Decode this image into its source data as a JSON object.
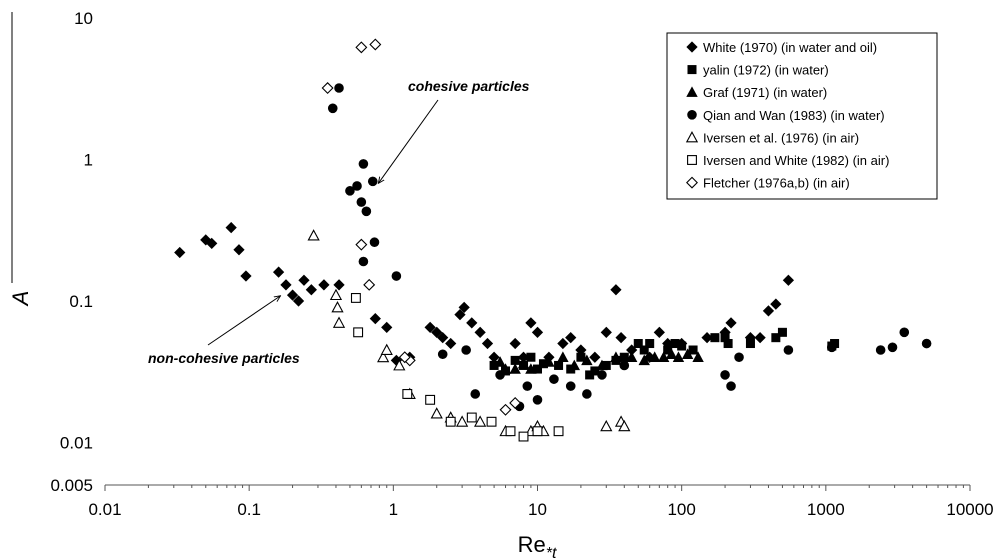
{
  "chart_data": {
    "type": "scatter",
    "title": "",
    "xlabel": "Re",
    "xlabel_sub": "*t",
    "ylabel": "A",
    "x_scale": "log",
    "y_scale": "log",
    "xlim": [
      0.01,
      10000
    ],
    "ylim": [
      0.005,
      10
    ],
    "x_ticks": [
      "0.01",
      "0.1",
      "1",
      "10",
      "100",
      "1000",
      "10000"
    ],
    "y_ticks": [
      "0.005",
      "0.01",
      "0.1",
      "1",
      "10"
    ],
    "grid": false,
    "legend_position": "top-right",
    "annotations": [
      {
        "text": "cohesive particles",
        "target": [
          0.75,
          0.7
        ]
      },
      {
        "text": "non-cohesive particles",
        "target": [
          0.15,
          0.12
        ]
      }
    ],
    "series": [
      {
        "name": "White (1970) (in water and oil)",
        "marker": "diamond-filled",
        "points": [
          [
            0.033,
            0.22
          ],
          [
            0.05,
            0.27
          ],
          [
            0.055,
            0.255
          ],
          [
            0.075,
            0.33
          ],
          [
            0.085,
            0.23
          ],
          [
            0.095,
            0.15
          ],
          [
            0.16,
            0.16
          ],
          [
            0.18,
            0.13
          ],
          [
            0.2,
            0.11
          ],
          [
            0.22,
            0.1
          ],
          [
            0.24,
            0.14
          ],
          [
            0.27,
            0.12
          ],
          [
            0.33,
            0.13
          ],
          [
            0.42,
            0.13
          ],
          [
            0.75,
            0.075
          ],
          [
            0.9,
            0.065
          ],
          [
            1.05,
            0.038
          ],
          [
            1.3,
            0.04
          ],
          [
            1.8,
            0.065
          ],
          [
            2.0,
            0.06
          ],
          [
            2.2,
            0.055
          ],
          [
            2.5,
            0.05
          ],
          [
            2.9,
            0.08
          ],
          [
            3.1,
            0.09
          ],
          [
            3.5,
            0.07
          ],
          [
            4,
            0.06
          ],
          [
            4.5,
            0.05
          ],
          [
            5,
            0.04
          ],
          [
            7,
            0.05
          ],
          [
            8,
            0.04
          ],
          [
            9,
            0.07
          ],
          [
            10,
            0.06
          ],
          [
            12,
            0.04
          ],
          [
            15,
            0.05
          ],
          [
            17,
            0.055
          ],
          [
            20,
            0.045
          ],
          [
            25,
            0.04
          ],
          [
            30,
            0.06
          ],
          [
            35,
            0.12
          ],
          [
            38,
            0.055
          ],
          [
            45,
            0.045
          ],
          [
            60,
            0.04
          ],
          [
            70,
            0.06
          ],
          [
            80,
            0.05
          ],
          [
            100,
            0.05
          ],
          [
            150,
            0.055
          ],
          [
            200,
            0.06
          ],
          [
            220,
            0.07
          ],
          [
            300,
            0.055
          ],
          [
            350,
            0.055
          ],
          [
            400,
            0.085
          ],
          [
            450,
            0.095
          ],
          [
            550,
            0.14
          ]
        ]
      },
      {
        "name": "yalin (1972) (in water)",
        "marker": "square-filled",
        "points": [
          [
            5,
            0.035
          ],
          [
            6,
            0.032
          ],
          [
            7,
            0.038
          ],
          [
            8,
            0.035
          ],
          [
            9,
            0.04
          ],
          [
            10,
            0.033
          ],
          [
            11,
            0.036
          ],
          [
            14,
            0.035
          ],
          [
            17,
            0.033
          ],
          [
            20,
            0.04
          ],
          [
            23,
            0.03
          ],
          [
            25,
            0.032
          ],
          [
            30,
            0.035
          ],
          [
            35,
            0.038
          ],
          [
            40,
            0.04
          ],
          [
            50,
            0.05
          ],
          [
            55,
            0.045
          ],
          [
            60,
            0.05
          ],
          [
            80,
            0.045
          ],
          [
            90,
            0.05
          ],
          [
            100,
            0.048
          ],
          [
            120,
            0.045
          ],
          [
            170,
            0.055
          ],
          [
            200,
            0.055
          ],
          [
            210,
            0.05
          ],
          [
            300,
            0.05
          ],
          [
            450,
            0.055
          ],
          [
            500,
            0.06
          ],
          [
            1100,
            0.048
          ],
          [
            1150,
            0.05
          ]
        ]
      },
      {
        "name": "Graf (1971) (in water)",
        "marker": "triangle-filled",
        "points": [
          [
            5.5,
            0.037
          ],
          [
            6,
            0.033
          ],
          [
            7,
            0.033
          ],
          [
            8,
            0.036
          ],
          [
            9,
            0.033
          ],
          [
            12,
            0.037
          ],
          [
            15,
            0.04
          ],
          [
            18,
            0.035
          ],
          [
            22,
            0.038
          ],
          [
            28,
            0.035
          ],
          [
            35,
            0.04
          ],
          [
            45,
            0.04
          ],
          [
            55,
            0.038
          ],
          [
            65,
            0.04
          ],
          [
            75,
            0.04
          ],
          [
            85,
            0.042
          ],
          [
            95,
            0.04
          ],
          [
            110,
            0.042
          ],
          [
            130,
            0.04
          ]
        ]
      },
      {
        "name": "Qian and Wan (1983) (in water)",
        "marker": "circle-filled",
        "points": [
          [
            0.38,
            2.3
          ],
          [
            0.42,
            3.2
          ],
          [
            0.5,
            0.6
          ],
          [
            0.56,
            0.65
          ],
          [
            0.6,
            0.5
          ],
          [
            0.62,
            0.93
          ],
          [
            0.65,
            0.43
          ],
          [
            0.72,
            0.7
          ],
          [
            0.74,
            0.26
          ],
          [
            0.62,
            0.19
          ],
          [
            1.05,
            0.15
          ],
          [
            2.2,
            0.042
          ],
          [
            3.2,
            0.045
          ],
          [
            3.7,
            0.022
          ],
          [
            5.5,
            0.03
          ],
          [
            7.5,
            0.018
          ],
          [
            8.5,
            0.025
          ],
          [
            10,
            0.02
          ],
          [
            13,
            0.028
          ],
          [
            17,
            0.025
          ],
          [
            22,
            0.022
          ],
          [
            28,
            0.03
          ],
          [
            40,
            0.035
          ],
          [
            200,
            0.03
          ],
          [
            220,
            0.025
          ],
          [
            250,
            0.04
          ],
          [
            550,
            0.045
          ],
          [
            1100,
            0.047
          ],
          [
            2400,
            0.045
          ],
          [
            2900,
            0.047
          ],
          [
            3500,
            0.06
          ],
          [
            5000,
            0.05
          ]
        ]
      },
      {
        "name": "Iversen et al. (1976) (in air)",
        "marker": "triangle-open",
        "points": [
          [
            0.28,
            0.29
          ],
          [
            0.4,
            0.11
          ],
          [
            0.41,
            0.09
          ],
          [
            0.42,
            0.07
          ],
          [
            0.85,
            0.04
          ],
          [
            0.9,
            0.045
          ],
          [
            1.1,
            0.035
          ],
          [
            1.3,
            0.022
          ],
          [
            2,
            0.016
          ],
          [
            2.5,
            0.015
          ],
          [
            3,
            0.014
          ],
          [
            4,
            0.014
          ],
          [
            6,
            0.012
          ],
          [
            9,
            0.012
          ],
          [
            10,
            0.013
          ],
          [
            11,
            0.012
          ],
          [
            30,
            0.013
          ],
          [
            38,
            0.014
          ],
          [
            40,
            0.013
          ]
        ]
      },
      {
        "name": "Iversen and White (1982) (in air)",
        "marker": "square-open",
        "points": [
          [
            0.55,
            0.105
          ],
          [
            0.57,
            0.06
          ],
          [
            1.25,
            0.022
          ],
          [
            1.8,
            0.02
          ],
          [
            2.5,
            0.014
          ],
          [
            3.5,
            0.015
          ],
          [
            4.8,
            0.014
          ],
          [
            6.5,
            0.012
          ],
          [
            8,
            0.011
          ],
          [
            10,
            0.012
          ],
          [
            14,
            0.012
          ]
        ]
      },
      {
        "name": "Fletcher (1976a,b) (in air)",
        "marker": "diamond-open",
        "points": [
          [
            0.35,
            3.2
          ],
          [
            0.6,
            6.2
          ],
          [
            0.75,
            6.5
          ],
          [
            0.6,
            0.25
          ],
          [
            0.68,
            0.13
          ],
          [
            6,
            0.017
          ],
          [
            7,
            0.019
          ],
          [
            1.3,
            0.038
          ],
          [
            1.2,
            0.04
          ]
        ]
      }
    ]
  }
}
